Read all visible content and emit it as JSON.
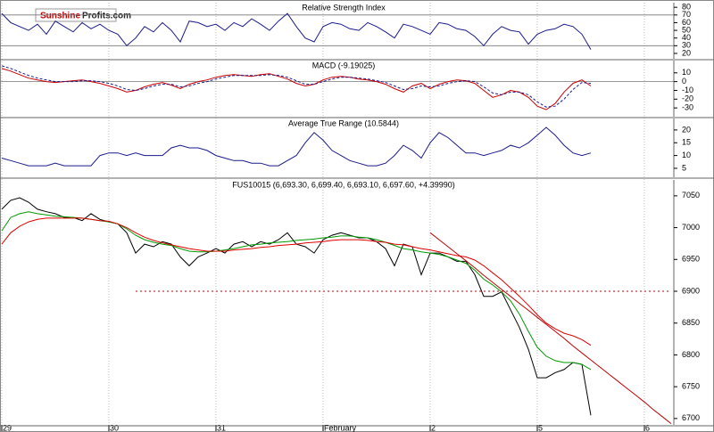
{
  "logo": {
    "part1": "Sunshine",
    "part2": "Profits.com"
  },
  "chart_data": [
    {
      "type": "line",
      "title": "Relative Strength Index",
      "ylim": [
        13,
        86
      ],
      "yticks": [
        20,
        30,
        40,
        50,
        60,
        70,
        80
      ],
      "ref_lines": [
        70,
        30
      ],
      "series": [
        {
          "color": "#1a1a8c",
          "values": [
            72,
            60,
            55,
            50,
            58,
            45,
            62,
            55,
            48,
            60,
            52,
            58,
            50,
            45,
            30,
            40,
            55,
            48,
            60,
            50,
            35,
            62,
            60,
            55,
            58,
            50,
            60,
            55,
            65,
            58,
            50,
            62,
            72,
            55,
            40,
            35,
            55,
            60,
            58,
            52,
            50,
            60,
            55,
            48,
            40,
            58,
            55,
            50,
            45,
            60,
            58,
            52,
            50,
            42,
            30,
            45,
            55,
            50,
            48,
            32,
            45,
            50,
            52,
            58,
            55,
            45,
            25,
            null,
            null,
            null,
            null,
            null,
            null,
            null,
            null,
            null
          ]
        }
      ]
    },
    {
      "type": "line",
      "title": "MACD (-9.19025)",
      "ylim": [
        -40,
        24
      ],
      "yticks": [
        -30,
        -20,
        -10,
        0,
        10
      ],
      "ref_lines": [
        0
      ],
      "series": [
        {
          "color": "#cc0000",
          "values": [
            15,
            12,
            8,
            4,
            2,
            0,
            -1,
            0,
            1,
            2,
            0,
            -2,
            -5,
            -8,
            -12,
            -10,
            -6,
            -3,
            -1,
            -4,
            -8,
            -3,
            0,
            2,
            5,
            7,
            8,
            7,
            6,
            8,
            9,
            6,
            3,
            -2,
            -5,
            -3,
            2,
            5,
            6,
            5,
            3,
            2,
            0,
            -3,
            -8,
            -12,
            -5,
            -2,
            -8,
            -3,
            0,
            2,
            1,
            -2,
            -10,
            -18,
            -15,
            -10,
            -12,
            -18,
            -28,
            -32,
            -25,
            -12,
            -2,
            2,
            -5,
            null,
            null,
            null,
            null,
            null,
            null,
            null,
            null,
            null
          ]
        },
        {
          "color": "#1a1a8c",
          "dash": true,
          "values": [
            18,
            15,
            11,
            7,
            4,
            2,
            0,
            0,
            0,
            1,
            1,
            0,
            -2,
            -5,
            -9,
            -10,
            -8,
            -5,
            -3,
            -3,
            -6,
            -5,
            -2,
            0,
            3,
            5,
            7,
            7,
            7,
            7,
            8,
            7,
            5,
            1,
            -3,
            -3,
            0,
            3,
            5,
            5,
            4,
            3,
            1,
            -1,
            -5,
            -9,
            -8,
            -5,
            -6,
            -5,
            -2,
            0,
            1,
            0,
            -6,
            -13,
            -15,
            -12,
            -12,
            -15,
            -23,
            -29,
            -28,
            -20,
            -9,
            -1,
            -2,
            null,
            null,
            null,
            null,
            null,
            null,
            null,
            null,
            null
          ]
        }
      ]
    },
    {
      "type": "line",
      "title": "Average True Range (10.5844)",
      "ylim": [
        1.5,
        24.5
      ],
      "yticks": [
        5,
        10,
        15,
        20
      ],
      "series": [
        {
          "color": "#1a1a8c",
          "values": [
            9,
            8,
            7,
            6,
            6,
            6,
            7,
            6,
            6,
            6,
            6,
            10,
            11,
            11,
            10,
            11,
            10,
            10,
            10,
            13,
            14,
            13,
            13,
            12,
            10,
            9,
            8,
            8,
            7,
            7,
            6,
            6,
            8,
            10,
            15,
            19,
            16,
            12,
            10,
            8,
            7,
            6,
            6,
            7,
            10,
            14,
            12,
            9,
            15,
            19,
            17,
            14,
            11,
            11,
            10,
            11,
            12,
            14,
            13,
            15,
            18,
            21,
            18,
            14,
            11,
            10,
            11,
            null,
            null,
            null,
            null,
            null,
            null,
            null,
            null,
            null
          ]
        }
      ]
    },
    {
      "type": "line",
      "title": "FUS10015 (6,693.30, 6,699.40, 6,693.10, 6,697.60, +4.39990)",
      "ylim": [
        6690,
        7075
      ],
      "yticks": [
        6700,
        6750,
        6800,
        6850,
        6900,
        6950,
        7000,
        7050
      ],
      "categories": [
        "29",
        null,
        null,
        null,
        null,
        null,
        null,
        null,
        null,
        null,
        null,
        null,
        "30",
        null,
        null,
        null,
        null,
        null,
        null,
        null,
        null,
        null,
        null,
        null,
        "31",
        null,
        null,
        null,
        null,
        null,
        null,
        null,
        null,
        null,
        null,
        null,
        "February",
        null,
        null,
        null,
        null,
        null,
        null,
        null,
        null,
        null,
        null,
        null,
        "2",
        null,
        null,
        null,
        null,
        null,
        null,
        null,
        null,
        null,
        null,
        null,
        "5",
        null,
        null,
        null,
        null,
        null,
        null,
        null,
        null,
        null,
        null,
        null,
        "6",
        null,
        null,
        null
      ],
      "series": [
        {
          "color": "#000000",
          "values": [
            7029,
            7043,
            7047,
            7040,
            7029,
            7025,
            7022,
            7016,
            7016,
            7011,
            7022,
            7013,
            7009,
            7006,
            6992,
            6960,
            6974,
            6970,
            6978,
            6974,
            6954,
            6940,
            6954,
            6960,
            6967,
            6960,
            6974,
            6978,
            6970,
            6978,
            6974,
            6981,
            6992,
            6974,
            6970,
            6960,
            6981,
            6988,
            6992,
            6988,
            6984,
            6984,
            6978,
            6967,
            6940,
            6974,
            6970,
            6926,
            6960,
            6960,
            6954,
            6947,
            6947,
            6926,
            6892,
            6892,
            6899,
            6871,
            6843,
            6809,
            6764,
            6764,
            6772,
            6777,
            6788,
            6785,
            6705,
            null,
            null,
            null,
            null,
            null,
            null,
            null,
            null,
            null
          ]
        },
        {
          "color": "#009900",
          "values": [
            6995,
            7016,
            7022,
            7025,
            7022,
            7020,
            7018,
            7017,
            7016,
            7015,
            7013,
            7011,
            7009,
            7006,
            6998,
            6988,
            6981,
            6977,
            6974,
            6972,
            6967,
            6963,
            6962,
            6962,
            6963,
            6965,
            6967,
            6970,
            6973,
            6974,
            6976,
            6977,
            6978,
            6980,
            6981,
            6982,
            6984,
            6985,
            6987,
            6987,
            6985,
            6984,
            6981,
            6977,
            6972,
            6967,
            6965,
            6962,
            6960,
            6958,
            6954,
            6949,
            6944,
            6933,
            6919,
            6910,
            6899,
            6885,
            6864,
            6837,
            6812,
            6798,
            6791,
            6788,
            6788,
            6785,
            6777,
            null,
            null,
            null,
            null,
            null,
            null,
            null,
            null,
            null
          ]
        },
        {
          "color": "#e00000",
          "values": [
            6974,
            6992,
            7002,
            7009,
            7013,
            7015,
            7015,
            7015,
            7015,
            7015,
            7013,
            7011,
            7010,
            7006,
            7000,
            6992,
            6985,
            6980,
            6976,
            6973,
            6970,
            6967,
            6965,
            6963,
            6963,
            6963,
            6965,
            6966,
            6967,
            6969,
            6970,
            6972,
            6973,
            6974,
            6976,
            6977,
            6978,
            6980,
            6981,
            6981,
            6981,
            6980,
            6978,
            6977,
            6974,
            6973,
            6970,
            6967,
            6965,
            6962,
            6959,
            6956,
            6954,
            6949,
            6940,
            6929,
            6918,
            6905,
            6892,
            6878,
            6863,
            6850,
            6841,
            6834,
            6830,
            6824,
            6815,
            null,
            null,
            null,
            null,
            null,
            null,
            null,
            null,
            null
          ]
        },
        {
          "color": "#c00000",
          "values": [
            null,
            null,
            null,
            null,
            null,
            null,
            null,
            null,
            null,
            null,
            null,
            null,
            null,
            null,
            null,
            null,
            null,
            null,
            null,
            null,
            null,
            null,
            null,
            null,
            null,
            null,
            null,
            null,
            null,
            null,
            null,
            null,
            null,
            null,
            null,
            null,
            null,
            null,
            null,
            null,
            null,
            null,
            null,
            null,
            null,
            null,
            null,
            null,
            6992,
            6981,
            6970,
            6959,
            6948,
            6937,
            6925,
            6914,
            6903,
            6892,
            6881,
            6870,
            6859,
            6848,
            6837,
            6826,
            6814,
            6803,
            6792,
            6781,
            6770,
            6759,
            6748,
            6737,
            6726,
            6714,
            6703,
            6692
          ]
        },
        {
          "color": "#c00000",
          "dotted": true,
          "values": [
            null,
            null,
            null,
            null,
            null,
            null,
            null,
            null,
            null,
            null,
            null,
            null,
            null,
            null,
            null,
            6900,
            6900,
            6900,
            6900,
            6900,
            6900,
            6900,
            6900,
            6900,
            6900,
            6900,
            6900,
            6900,
            6900,
            6900,
            6900,
            6900,
            6900,
            6900,
            6900,
            6900,
            6900,
            6900,
            6900,
            6900,
            6900,
            6900,
            6900,
            6900,
            6900,
            6900,
            6900,
            6900,
            6900,
            6900,
            6900,
            6900,
            6900,
            6900,
            6900,
            6900,
            6900,
            6900,
            6900,
            6900,
            6900,
            6900,
            6900,
            6900,
            6900,
            6900,
            6900,
            6900,
            6900,
            6900,
            6900,
            6900,
            6900,
            6900,
            6900,
            6900
          ]
        }
      ]
    }
  ]
}
